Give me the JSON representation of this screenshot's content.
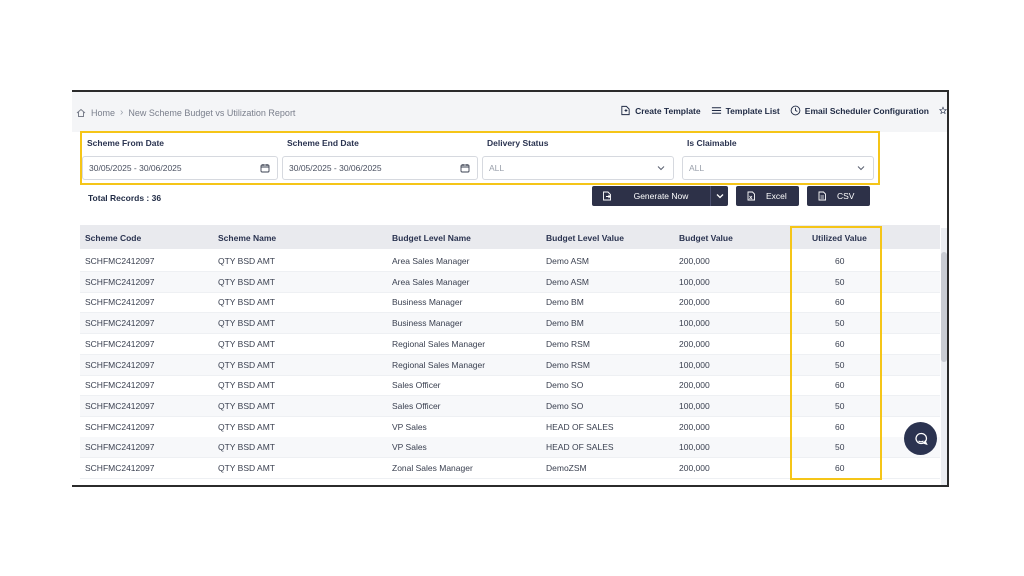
{
  "breadcrumb": {
    "home": "Home",
    "current": "New Scheme Budget vs Utilization Report"
  },
  "actions": {
    "create_template": "Create Template",
    "template_list": "Template List",
    "email_scheduler": "Email Scheduler Configuration"
  },
  "filters": {
    "scheme_from_date": {
      "label": "Scheme From Date",
      "value": "30/05/2025 - 30/06/2025"
    },
    "scheme_end_date": {
      "label": "Scheme End Date",
      "value": "30/05/2025 - 30/06/2025"
    },
    "delivery_status": {
      "label": "Delivery Status",
      "value": "ALL"
    },
    "is_claimable": {
      "label": "Is Claimable",
      "value": "ALL"
    }
  },
  "total_records": "Total Records : 36",
  "buttons": {
    "generate": "Generate Now",
    "excel": "Excel",
    "csv": "CSV"
  },
  "table": {
    "headers": [
      "Scheme Code",
      "Scheme Name",
      "Budget Level Name",
      "Budget Level Value",
      "Budget Value",
      "Utilized Value"
    ],
    "rows": [
      [
        "SCHFMC2412097",
        "QTY BSD AMT",
        "Area Sales Manager",
        "Demo ASM",
        "200,000",
        "60"
      ],
      [
        "SCHFMC2412097",
        "QTY BSD AMT",
        "Area Sales Manager",
        "Demo ASM",
        "100,000",
        "50"
      ],
      [
        "SCHFMC2412097",
        "QTY BSD AMT",
        "Business Manager",
        "Demo BM",
        "200,000",
        "60"
      ],
      [
        "SCHFMC2412097",
        "QTY BSD AMT",
        "Business Manager",
        "Demo BM",
        "100,000",
        "50"
      ],
      [
        "SCHFMC2412097",
        "QTY BSD AMT",
        "Regional Sales Manager",
        "Demo RSM",
        "200,000",
        "60"
      ],
      [
        "SCHFMC2412097",
        "QTY BSD AMT",
        "Regional Sales Manager",
        "Demo RSM",
        "100,000",
        "50"
      ],
      [
        "SCHFMC2412097",
        "QTY BSD AMT",
        "Sales Officer",
        "Demo SO",
        "200,000",
        "60"
      ],
      [
        "SCHFMC2412097",
        "QTY BSD AMT",
        "Sales Officer",
        "Demo SO",
        "100,000",
        "50"
      ],
      [
        "SCHFMC2412097",
        "QTY BSD AMT",
        "VP Sales",
        "HEAD OF SALES",
        "200,000",
        "60"
      ],
      [
        "SCHFMC2412097",
        "QTY BSD AMT",
        "VP Sales",
        "HEAD OF SALES",
        "100,000",
        "50"
      ],
      [
        "SCHFMC2412097",
        "QTY BSD AMT",
        "Zonal Sales Manager",
        "DemoZSM",
        "200,000",
        "60"
      ]
    ]
  },
  "colors": {
    "highlight": "#f5c518",
    "button_bg": "#2d3148",
    "header_bg": "#e9eaee"
  },
  "icons": [
    "home-icon",
    "create-template-icon",
    "template-list-icon",
    "clock-icon",
    "star-icon",
    "calendar-icon",
    "chevron-down-icon",
    "export-icon",
    "excel-icon",
    "csv-icon",
    "chat-icon"
  ]
}
